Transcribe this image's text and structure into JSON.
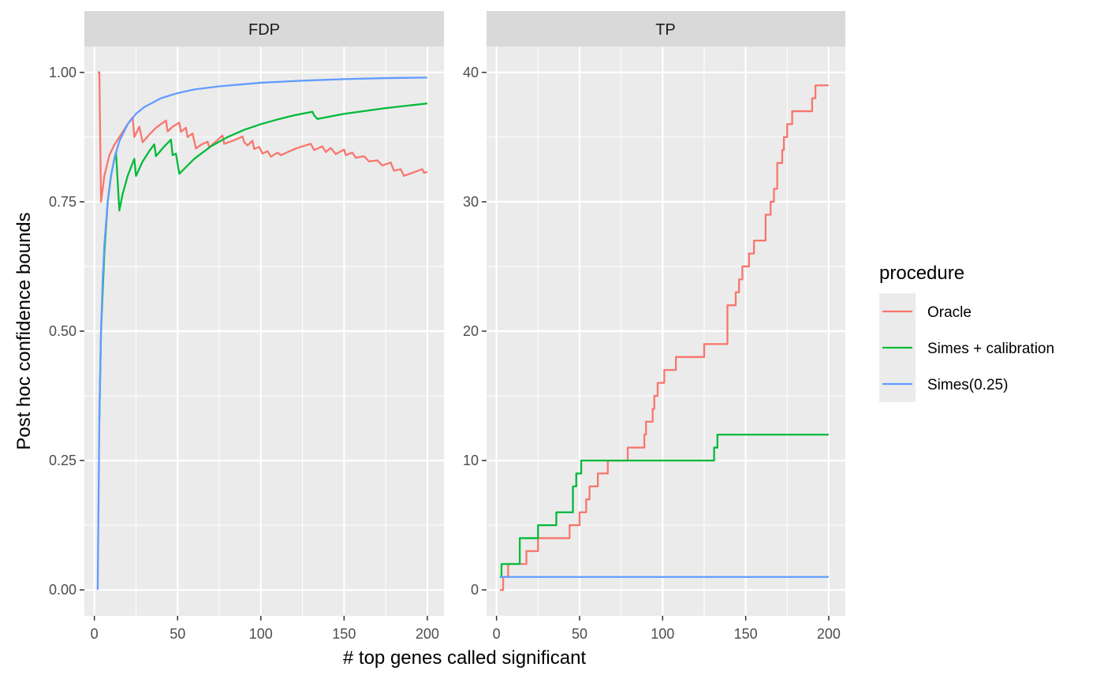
{
  "chart_data": {
    "type": "line",
    "ylabel": "Post hoc confidence bounds",
    "xlabel": "# top genes called significant",
    "grid": true,
    "legend": {
      "title": "procedure",
      "placement": "right",
      "entries": [
        {
          "name": "Oracle",
          "color": "#F8766D"
        },
        {
          "name": "Simes + calibration",
          "color": "#00BA38"
        },
        {
          "name": "Simes(0.25)",
          "color": "#619CFF"
        }
      ]
    },
    "panels": [
      {
        "title": "FDP",
        "xlim": [
          -6,
          210
        ],
        "ylim": [
          -0.05,
          1.05
        ],
        "xticks": [
          0,
          50,
          100,
          150,
          200
        ],
        "xtick_labels": [
          "0",
          "50",
          "100",
          "150",
          "200"
        ],
        "yticks": [
          0,
          0.25,
          0.5,
          0.75,
          1
        ],
        "ytick_labels": [
          "0.00",
          "0.25",
          "0.50",
          "0.75",
          "1.00"
        ],
        "series": [
          {
            "name": "Oracle",
            "color": "#F8766D",
            "points": [
              [
                2,
                1.0
              ],
              [
                3,
                1.0
              ],
              [
                4,
                0.75
              ],
              [
                6,
                0.8
              ],
              [
                9,
                0.84
              ],
              [
                12,
                0.86
              ],
              [
                16,
                0.88
              ],
              [
                20,
                0.9
              ],
              [
                23,
                0.913
              ],
              [
                24,
                0.875
              ],
              [
                27,
                0.895
              ],
              [
                29,
                0.865
              ],
              [
                33,
                0.88
              ],
              [
                37,
                0.893
              ],
              [
                43,
                0.907
              ],
              [
                44,
                0.886
              ],
              [
                47,
                0.895
              ],
              [
                51,
                0.903
              ],
              [
                52,
                0.885
              ],
              [
                55,
                0.893
              ],
              [
                56,
                0.875
              ],
              [
                59,
                0.882
              ],
              [
                61,
                0.853
              ],
              [
                64,
                0.86
              ],
              [
                68,
                0.866
              ],
              [
                69,
                0.855
              ],
              [
                77,
                0.878
              ],
              [
                78,
                0.862
              ],
              [
                84,
                0.869
              ],
              [
                89,
                0.876
              ],
              [
                90,
                0.865
              ],
              [
                92,
                0.859
              ],
              [
                95,
                0.868
              ],
              [
                96,
                0.852
              ],
              [
                99,
                0.856
              ],
              [
                101,
                0.843
              ],
              [
                104,
                0.848
              ],
              [
                106,
                0.837
              ],
              [
                110,
                0.845
              ],
              [
                112,
                0.84
              ],
              [
                121,
                0.853
              ],
              [
                130,
                0.862
              ],
              [
                132,
                0.85
              ],
              [
                137,
                0.857
              ],
              [
                139,
                0.846
              ],
              [
                142,
                0.854
              ],
              [
                145,
                0.842
              ],
              [
                150,
                0.851
              ],
              [
                151,
                0.84
              ],
              [
                155,
                0.845
              ],
              [
                157,
                0.835
              ],
              [
                162,
                0.838
              ],
              [
                165,
                0.828
              ],
              [
                170,
                0.83
              ],
              [
                173,
                0.82
              ],
              [
                178,
                0.826
              ],
              [
                180,
                0.81
              ],
              [
                184,
                0.813
              ],
              [
                186,
                0.8
              ],
              [
                191,
                0.806
              ],
              [
                197,
                0.813
              ],
              [
                198,
                0.806
              ],
              [
                200,
                0.808
              ]
            ]
          },
          {
            "name": "Simes + calibration",
            "color": "#00BA38",
            "points": [
              [
                3,
                0.33
              ],
              [
                4,
                0.5
              ],
              [
                6,
                0.65
              ],
              [
                8,
                0.75
              ],
              [
                10,
                0.8
              ],
              [
                12,
                0.833
              ],
              [
                13,
                0.846
              ],
              [
                15,
                0.733
              ],
              [
                17,
                0.765
              ],
              [
                20,
                0.8
              ],
              [
                24,
                0.833
              ],
              [
                25,
                0.8
              ],
              [
                29,
                0.828
              ],
              [
                33,
                0.848
              ],
              [
                36,
                0.861
              ],
              [
                37,
                0.838
              ],
              [
                42,
                0.857
              ],
              [
                46,
                0.87
              ],
              [
                47,
                0.84
              ],
              [
                49,
                0.843
              ],
              [
                51,
                0.804
              ],
              [
                60,
                0.833
              ],
              [
                70,
                0.857
              ],
              [
                80,
                0.875
              ],
              [
                90,
                0.889
              ],
              [
                100,
                0.9
              ],
              [
                110,
                0.909
              ],
              [
                120,
                0.917
              ],
              [
                131,
                0.924
              ],
              [
                132,
                0.917
              ],
              [
                134,
                0.91
              ],
              [
                150,
                0.92
              ],
              [
                175,
                0.931
              ],
              [
                200,
                0.94
              ]
            ]
          },
          {
            "name": "Simes(0.25)",
            "color": "#619CFF",
            "points": [
              [
                2,
                0.0
              ],
              [
                3,
                0.33
              ],
              [
                4,
                0.5
              ],
              [
                5,
                0.6
              ],
              [
                6,
                0.667
              ],
              [
                8,
                0.75
              ],
              [
                10,
                0.8
              ],
              [
                12,
                0.833
              ],
              [
                15,
                0.867
              ],
              [
                20,
                0.9
              ],
              [
                25,
                0.92
              ],
              [
                30,
                0.933
              ],
              [
                40,
                0.95
              ],
              [
                50,
                0.96
              ],
              [
                60,
                0.967
              ],
              [
                75,
                0.973
              ],
              [
                100,
                0.98
              ],
              [
                125,
                0.984
              ],
              [
                150,
                0.987
              ],
              [
                175,
                0.989
              ],
              [
                200,
                0.99
              ]
            ]
          }
        ]
      },
      {
        "title": "TP",
        "xlim": [
          -6,
          210
        ],
        "ylim": [
          -2,
          42
        ],
        "xticks": [
          0,
          50,
          100,
          150,
          200
        ],
        "xtick_labels": [
          "0",
          "50",
          "100",
          "150",
          "200"
        ],
        "yticks": [
          0,
          10,
          20,
          30,
          40
        ],
        "ytick_labels": [
          "0",
          "10",
          "20",
          "30",
          "40"
        ],
        "series": [
          {
            "name": "Oracle",
            "color": "#F8766D",
            "steps": [
              [
                2,
                0
              ],
              [
                4,
                1
              ],
              [
                7,
                2
              ],
              [
                18,
                3
              ],
              [
                25,
                4
              ],
              [
                44,
                5
              ],
              [
                50,
                6
              ],
              [
                54,
                7
              ],
              [
                56,
                8
              ],
              [
                61,
                9
              ],
              [
                67,
                10
              ],
              [
                79,
                11
              ],
              [
                89,
                12
              ],
              [
                90,
                13
              ],
              [
                94,
                14
              ],
              [
                95,
                15
              ],
              [
                97,
                16
              ],
              [
                101,
                17
              ],
              [
                108,
                18
              ],
              [
                125,
                19
              ],
              [
                139,
                22
              ],
              [
                144,
                23
              ],
              [
                146,
                24
              ],
              [
                148,
                25
              ],
              [
                152,
                26
              ],
              [
                155,
                27
              ],
              [
                162,
                29
              ],
              [
                165,
                30
              ],
              [
                167,
                31
              ],
              [
                169,
                33
              ],
              [
                172,
                34
              ],
              [
                173,
                35
              ],
              [
                175,
                36
              ],
              [
                178,
                37
              ],
              [
                190,
                38
              ],
              [
                192,
                39
              ],
              [
                200,
                39
              ]
            ]
          },
          {
            "name": "Simes + calibration",
            "color": "#00BA38",
            "steps": [
              [
                2,
                1
              ],
              [
                3,
                2
              ],
              [
                14,
                4
              ],
              [
                25,
                5
              ],
              [
                36,
                6
              ],
              [
                46,
                8
              ],
              [
                48,
                9
              ],
              [
                51,
                10
              ],
              [
                131,
                11
              ],
              [
                133,
                12
              ],
              [
                200,
                12
              ]
            ]
          },
          {
            "name": "Simes(0.25)",
            "color": "#619CFF",
            "steps": [
              [
                2,
                1
              ],
              [
                200,
                1
              ]
            ]
          }
        ]
      }
    ]
  }
}
